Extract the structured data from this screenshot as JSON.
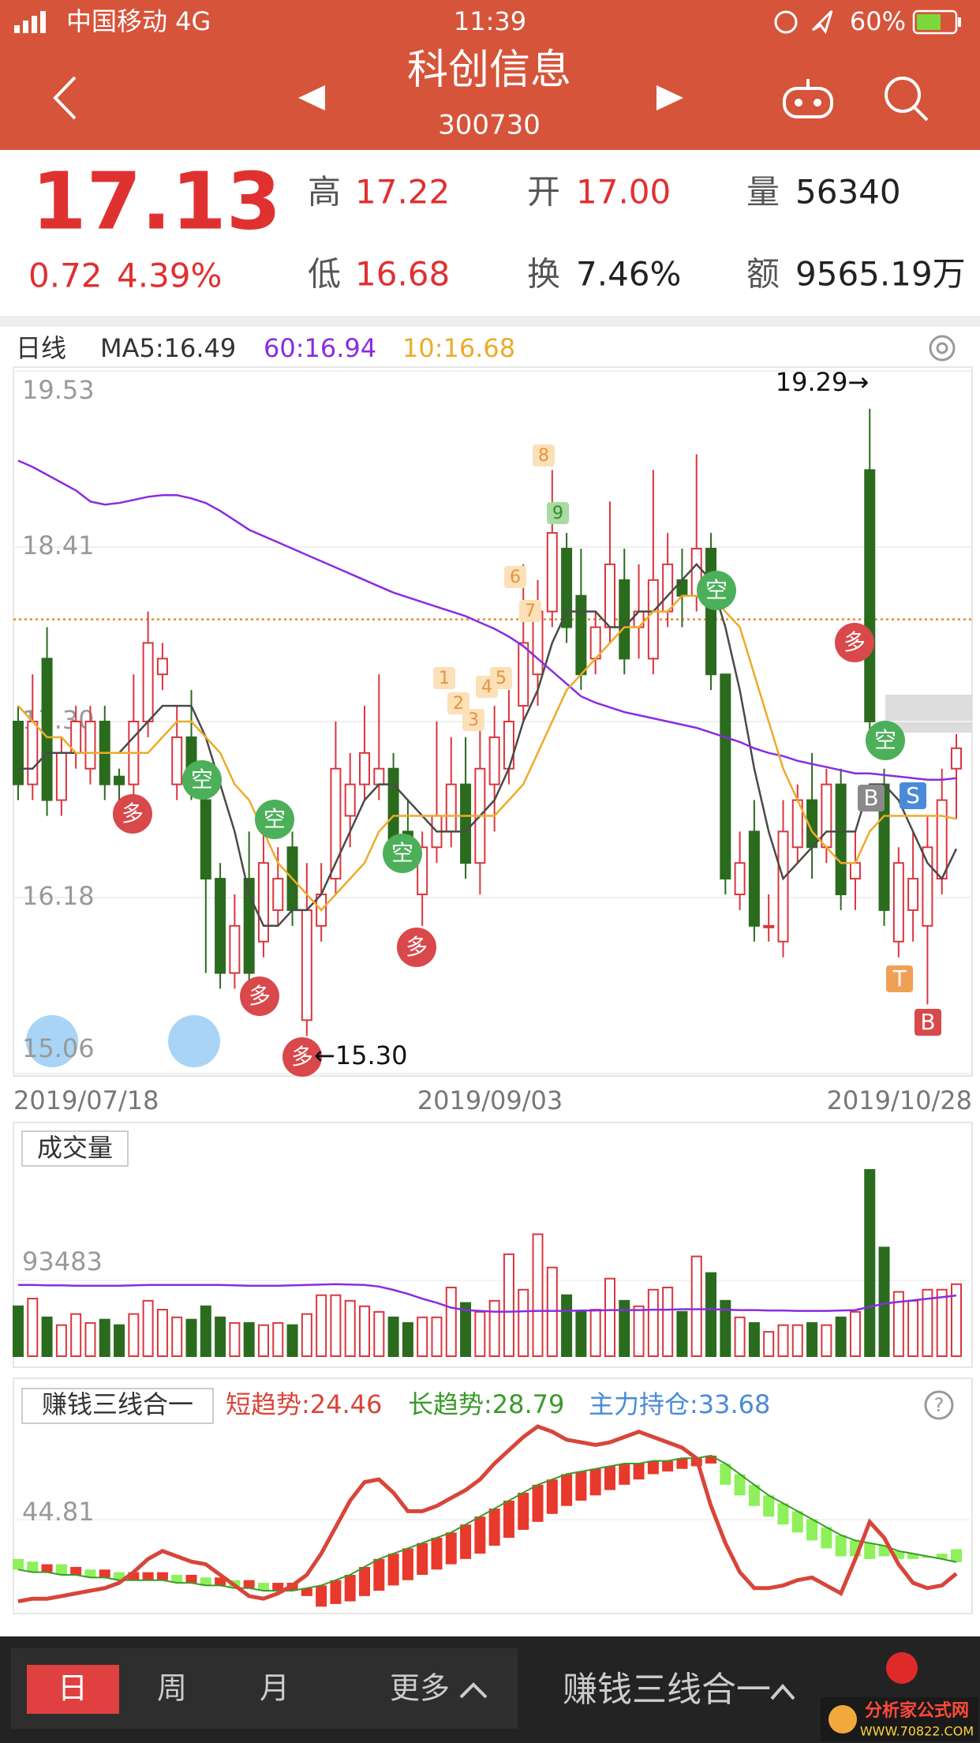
{
  "status_bar": {
    "carrier": "中国移动 4G",
    "time": "11:39",
    "battery": "60%"
  },
  "header": {
    "title": "科创信息",
    "code": "300730"
  },
  "quote": {
    "price": "17.13",
    "change": "0.72",
    "change_pct": "4.39%",
    "high_label": "高",
    "high": "17.22",
    "open_label": "开",
    "open": "17.00",
    "volume_label": "量",
    "volume": "56340",
    "low_label": "低",
    "low": "16.68",
    "turnover_label": "换",
    "turnover": "7.46%",
    "amount_label": "额",
    "amount": "9565.19万"
  },
  "chart_data": [
    {
      "type": "candlestick",
      "title": "日线",
      "up_color": "#d9363e",
      "down_color": "#2b6b1e",
      "x_labels": [
        "2019/07/18",
        "2019/09/03",
        "2019/10/28"
      ],
      "ylim": [
        15.06,
        19.53
      ],
      "yticks": [
        19.53,
        18.41,
        {
          "value": 17.3,
          "label": "17.30"
        },
        16.18,
        15.06
      ],
      "reference_line": 17.95,
      "open": [
        17.3,
        16.9,
        17.7,
        16.8,
        17.1,
        17.0,
        17.3,
        16.95,
        16.9,
        17.3,
        17.6,
        16.9,
        17.2,
        16.8,
        16.3,
        15.7,
        16.3,
        15.9,
        16.1,
        16.5,
        15.4,
        16.0,
        16.3,
        16.7,
        16.9,
        16.9,
        17.0,
        16.6,
        16.2,
        16.5,
        16.6,
        16.9,
        16.4,
        16.9,
        17.0,
        17.4,
        17.6,
        18.0,
        18.4,
        18.1,
        17.7,
        17.9,
        18.2,
        17.9,
        17.7,
        18.0,
        18.2,
        18.1,
        18.4,
        17.6,
        16.2,
        16.6,
        16.0,
        15.9,
        16.5,
        16.8,
        16.5,
        16.9,
        16.3,
        18.9,
        16.9,
        15.9,
        16.1,
        16.0,
        16.3,
        17.0
      ],
      "high": [
        17.4,
        17.6,
        17.9,
        17.2,
        17.4,
        17.4,
        17.4,
        17.0,
        17.6,
        18.0,
        17.8,
        17.4,
        17.5,
        16.9,
        16.4,
        16.2,
        16.6,
        16.6,
        16.5,
        16.6,
        16.4,
        16.4,
        17.3,
        17.1,
        17.4,
        17.6,
        17.1,
        16.8,
        16.6,
        17.3,
        17.2,
        17.2,
        17.3,
        17.4,
        17.5,
        18.3,
        18.2,
        18.9,
        18.5,
        18.4,
        18.0,
        18.7,
        18.4,
        18.3,
        18.9,
        18.5,
        18.4,
        19.0,
        18.5,
        17.6,
        16.6,
        16.8,
        16.2,
        16.8,
        16.9,
        17.1,
        17.0,
        17.0,
        16.6,
        19.29,
        17.0,
        16.5,
        16.6,
        16.7,
        17.0,
        17.22
      ],
      "low": [
        16.8,
        16.8,
        16.7,
        16.7,
        17.0,
        16.9,
        16.8,
        16.8,
        16.8,
        17.2,
        17.5,
        16.8,
        16.8,
        15.7,
        15.6,
        15.6,
        15.6,
        15.8,
        16.0,
        16.0,
        15.3,
        15.9,
        16.2,
        16.5,
        16.8,
        16.8,
        16.4,
        16.4,
        16.0,
        16.4,
        16.5,
        16.3,
        16.2,
        16.6,
        16.9,
        17.3,
        17.4,
        17.9,
        17.8,
        17.5,
        17.6,
        17.8,
        17.6,
        17.7,
        17.6,
        17.9,
        17.9,
        18.0,
        17.5,
        16.2,
        16.1,
        15.9,
        15.9,
        15.8,
        16.4,
        16.3,
        16.4,
        16.1,
        16.1,
        17.2,
        16.0,
        15.8,
        15.9,
        15.5,
        16.2,
        16.68
      ],
      "close": [
        16.9,
        17.3,
        16.8,
        17.1,
        17.3,
        17.3,
        16.9,
        16.9,
        17.3,
        17.8,
        17.7,
        17.2,
        17.0,
        16.3,
        15.7,
        16.0,
        15.7,
        16.4,
        16.3,
        16.1,
        16.1,
        16.2,
        17.0,
        16.9,
        17.1,
        17.0,
        16.5,
        16.5,
        16.5,
        16.7,
        16.9,
        16.4,
        17.0,
        17.2,
        17.3,
        17.8,
        18.0,
        18.5,
        17.9,
        17.6,
        17.9,
        18.3,
        17.7,
        18.0,
        18.2,
        18.3,
        18.1,
        18.4,
        17.6,
        16.3,
        16.4,
        16.0,
        16.0,
        16.6,
        16.8,
        16.5,
        16.9,
        16.2,
        16.4,
        17.3,
        16.1,
        16.4,
        16.3,
        16.5,
        16.8,
        17.13
      ],
      "series": [
        {
          "name": "MA5:16.49",
          "color": "#4a4a4a",
          "values": [
            17.0,
            17.0,
            17.1,
            17.1,
            17.1,
            17.1,
            17.1,
            17.1,
            17.2,
            17.3,
            17.4,
            17.4,
            17.4,
            17.2,
            16.9,
            16.6,
            16.2,
            16.0,
            16.0,
            16.1,
            16.1,
            16.2,
            16.4,
            16.6,
            16.8,
            16.9,
            16.9,
            16.8,
            16.7,
            16.6,
            16.6,
            16.6,
            16.7,
            16.8,
            17.0,
            17.3,
            17.5,
            17.8,
            18.0,
            18.0,
            18.0,
            17.9,
            17.9,
            18.0,
            18.0,
            18.1,
            18.2,
            18.3,
            18.2,
            17.9,
            17.5,
            17.0,
            16.6,
            16.3,
            16.4,
            16.5,
            16.6,
            16.6,
            16.6,
            16.9,
            16.9,
            16.8,
            16.6,
            16.4,
            16.3,
            16.49
          ]
        },
        {
          "name": "60:16.94",
          "color": "#8a2be2",
          "values": [
            18.96,
            18.92,
            18.87,
            18.82,
            18.77,
            18.7,
            18.68,
            18.69,
            18.71,
            18.73,
            18.74,
            18.74,
            18.72,
            18.69,
            18.64,
            18.58,
            18.52,
            18.48,
            18.44,
            18.4,
            18.36,
            18.32,
            18.28,
            18.24,
            18.2,
            18.16,
            18.12,
            18.09,
            18.06,
            18.03,
            18.0,
            17.97,
            17.93,
            17.89,
            17.84,
            17.78,
            17.7,
            17.62,
            17.54,
            17.46,
            17.42,
            17.39,
            17.36,
            17.34,
            17.32,
            17.3,
            17.28,
            17.26,
            17.23,
            17.2,
            17.17,
            17.13,
            17.1,
            17.08,
            17.05,
            17.03,
            17.01,
            16.99,
            16.97,
            16.97,
            16.96,
            16.95,
            16.94,
            16.93,
            16.93,
            16.94
          ]
        },
        {
          "name": "10:16.68",
          "color": "#eeaa2a",
          "values": [
            17.4,
            17.3,
            17.2,
            17.2,
            17.1,
            17.1,
            17.1,
            17.1,
            17.1,
            17.1,
            17.2,
            17.3,
            17.3,
            17.2,
            17.1,
            16.9,
            16.8,
            16.6,
            16.4,
            16.3,
            16.2,
            16.1,
            16.2,
            16.3,
            16.4,
            16.6,
            16.7,
            16.7,
            16.7,
            16.7,
            16.7,
            16.7,
            16.7,
            16.7,
            16.8,
            16.9,
            17.1,
            17.3,
            17.5,
            17.6,
            17.7,
            17.8,
            17.9,
            17.9,
            18.0,
            18.0,
            18.1,
            18.1,
            18.1,
            18.0,
            17.9,
            17.6,
            17.3,
            17.0,
            16.8,
            16.6,
            16.5,
            16.4,
            16.4,
            16.6,
            16.7,
            16.7,
            16.7,
            16.7,
            16.7,
            16.68
          ]
        }
      ],
      "annotations": [
        "19.29→",
        "←15.30"
      ],
      "signals": [
        "多",
        "空",
        "空",
        "多",
        "多",
        "空",
        "多",
        "1",
        "2",
        "3",
        "4",
        "5",
        "6",
        "7",
        "8",
        "9",
        "空",
        "多",
        "空",
        "B",
        "S",
        "T",
        "B"
      ]
    },
    {
      "type": "bar",
      "title": "成交量",
      "ylim": [
        0,
        240000
      ],
      "yticks": [
        93483
      ],
      "values": [
        61700,
        71200,
        48000,
        38400,
        52100,
        41100,
        45200,
        38400,
        52100,
        68500,
        57500,
        48000,
        45200,
        61700,
        48000,
        41100,
        41100,
        38400,
        41100,
        38400,
        52100,
        75400,
        75400,
        68500,
        61700,
        54800,
        48000,
        41100,
        48000,
        48000,
        84900,
        65800,
        54800,
        68500,
        126000,
        82200,
        150700,
        109600,
        75400,
        54800,
        57500,
        95900,
        68500,
        61700,
        82200,
        84900,
        54800,
        123300,
        102800,
        68500,
        48000,
        41100,
        30100,
        38400,
        38400,
        41100,
        38400,
        48000,
        54800,
        230200,
        134300,
        79500,
        68500,
        82200,
        82200,
        89000
      ],
      "line": {
        "color": "#8a2be2",
        "values": [
          88000,
          88000,
          87500,
          87500,
          87000,
          87000,
          87000,
          87000,
          87500,
          88000,
          88000,
          88000,
          88000,
          88000,
          88000,
          87500,
          87000,
          87000,
          87000,
          87500,
          88000,
          88500,
          89000,
          88500,
          88000,
          86000,
          82000,
          77000,
          71000,
          66000,
          60000,
          57000,
          56000,
          55000,
          55000,
          55500,
          56000,
          56000,
          56000,
          56500,
          56500,
          57000,
          57000,
          57000,
          57500,
          57500,
          58000,
          58000,
          58000,
          57500,
          57000,
          57000,
          56500,
          56500,
          56000,
          56000,
          56000,
          56500,
          57000,
          61000,
          65000,
          67000,
          69000,
          71000,
          73000,
          75000
        ]
      }
    },
    {
      "type": "line",
      "title": "赚钱三线合一",
      "ylim": [
        10,
        94
      ],
      "yticks": [
        44.81
      ],
      "up_color": "#e8392c",
      "down_color": "#8ef05a",
      "series": [
        {
          "name": "短趋势:24.46",
          "color": "#d8453a",
          "values": [
            14,
            15,
            15,
            16,
            17,
            18,
            19,
            21,
            25,
            30,
            33,
            31,
            29,
            28,
            24,
            20,
            16,
            15,
            17,
            20,
            24,
            32,
            42,
            52,
            59,
            60,
            55,
            48,
            48,
            50,
            53,
            56,
            60,
            66,
            71,
            76,
            80,
            78,
            75,
            74,
            73,
            74,
            76,
            78,
            76,
            74,
            72,
            68,
            50,
            36,
            25,
            19,
            19,
            20,
            22,
            23,
            20,
            17,
            30,
            44,
            38,
            28,
            21,
            19,
            20,
            24.46
          ]
        },
        {
          "name": "长趋势:28.79",
          "color": "#3a9a2a",
          "values": [
            26,
            25,
            25,
            24,
            24,
            23,
            23,
            22,
            22,
            22,
            22,
            21,
            21,
            20,
            20,
            19,
            19,
            18,
            18,
            18,
            19,
            20,
            22,
            24,
            27,
            30,
            32,
            34,
            36,
            38,
            40,
            43,
            46,
            49,
            52,
            55,
            58,
            60,
            62,
            63,
            64,
            65,
            66,
            66,
            67,
            67,
            68,
            68,
            69,
            66,
            62,
            58,
            54,
            51,
            48,
            45,
            42,
            39,
            37,
            36,
            35,
            33,
            32,
            31,
            30,
            28.79
          ]
        },
        {
          "name": "主力持仓:33.68",
          "color": "#4a8ad8",
          "values": [
            30,
            29,
            28,
            28,
            27,
            26,
            26,
            25,
            25,
            25,
            25,
            24,
            24,
            23,
            23,
            22,
            22,
            21,
            21,
            21,
            16,
            12,
            13,
            14,
            16,
            18,
            20,
            22,
            24,
            26,
            28,
            30,
            32,
            35,
            38,
            41,
            44,
            47,
            50,
            52,
            54,
            56,
            58,
            60,
            62,
            63,
            64,
            65,
            66,
            58,
            54,
            50,
            46,
            43,
            40,
            37,
            34,
            31,
            31,
            30,
            31,
            30,
            30,
            31,
            32,
            33.68
          ]
        }
      ]
    }
  ],
  "tabs": [
    "日",
    "周",
    "月",
    "更多",
    "赚钱三线合一"
  ],
  "watermark": [
    "分析家公式网",
    "WWW.70822.COM"
  ]
}
